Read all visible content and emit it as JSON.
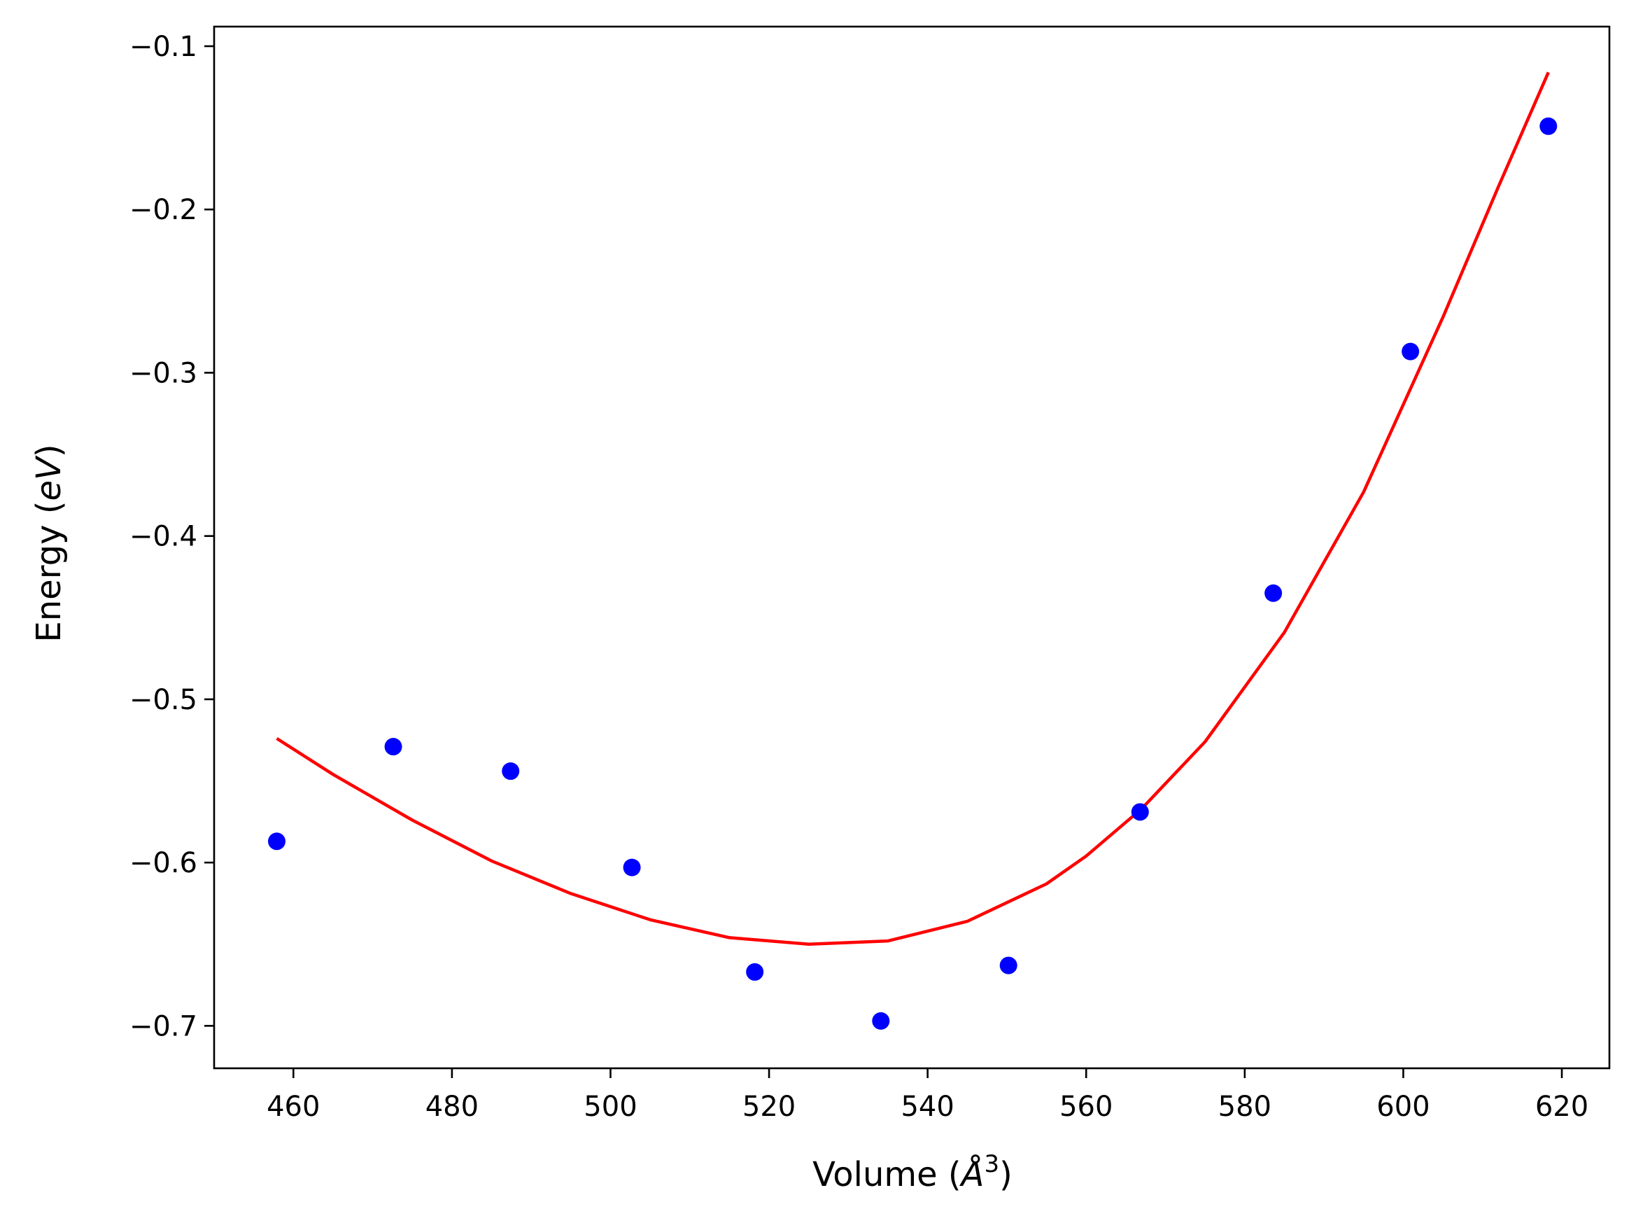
{
  "chart_data": {
    "type": "scatter",
    "xlabel": "Volume (Å³)",
    "xlabel_parts": {
      "prefix": "Volume (",
      "symbol": "Å",
      "exponent": "3",
      "suffix": ")"
    },
    "ylabel": "Energy (eV)",
    "ylabel_parts": {
      "prefix": "Energy (",
      "symbol": "eV",
      "suffix": ")"
    },
    "xlim": [
      450,
      626
    ],
    "ylim": [
      -0.726,
      -0.088
    ],
    "xticks": [
      460,
      480,
      500,
      520,
      540,
      560,
      580,
      600,
      620
    ],
    "xtick_labels": [
      "460",
      "480",
      "500",
      "520",
      "540",
      "560",
      "580",
      "600",
      "620"
    ],
    "yticks": [
      -0.7,
      -0.6,
      -0.5,
      -0.4,
      -0.3,
      -0.2,
      -0.1
    ],
    "ytick_labels": [
      "−0.7",
      "−0.6",
      "−0.5",
      "−0.4",
      "−0.3",
      "−0.2",
      "−0.1"
    ],
    "grid": false,
    "series": [
      {
        "kind": "points",
        "color": "#0000ff",
        "x": [
          457.9,
          472.6,
          487.4,
          502.7,
          518.2,
          534.1,
          550.2,
          566.8,
          583.6,
          600.9,
          618.3
        ],
        "y": [
          -0.587,
          -0.529,
          -0.544,
          -0.603,
          -0.667,
          -0.697,
          -0.663,
          -0.569,
          -0.435,
          -0.287,
          -0.149
        ]
      },
      {
        "kind": "fit-line",
        "color": "#ff0000",
        "x": [
          457.9,
          465,
          475,
          485,
          495,
          505,
          515,
          525,
          535,
          545,
          555,
          560,
          567,
          575,
          585,
          595,
          605,
          612,
          618.3
        ],
        "y": [
          -0.524,
          -0.546,
          -0.574,
          -0.599,
          -0.619,
          -0.635,
          -0.646,
          -0.65,
          -0.648,
          -0.636,
          -0.613,
          -0.596,
          -0.567,
          -0.526,
          -0.459,
          -0.373,
          -0.266,
          -0.186,
          -0.116
        ]
      }
    ]
  }
}
